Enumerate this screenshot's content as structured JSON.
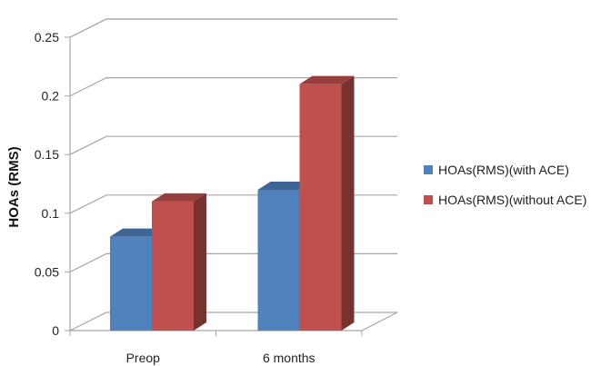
{
  "chart_data": {
    "type": "bar",
    "categories": [
      "Preop",
      "6 months"
    ],
    "series": [
      {
        "name": "HOAs(RMS)(with ACE)",
        "values": [
          0.08,
          0.12
        ],
        "color": "#4f81bd"
      },
      {
        "name": "HOAs(RMS)(without ACE)",
        "values": [
          0.11,
          0.21
        ],
        "color": "#c0504d"
      }
    ],
    "ylabel": "HOAs (RMS)",
    "ylim": [
      0,
      0.25
    ],
    "yticks": [
      "0",
      "0.05",
      "0.1",
      "0.15",
      "0.2",
      "0.25"
    ],
    "grid": true,
    "legend_position": "right",
    "style": "3d-clustered-column"
  }
}
